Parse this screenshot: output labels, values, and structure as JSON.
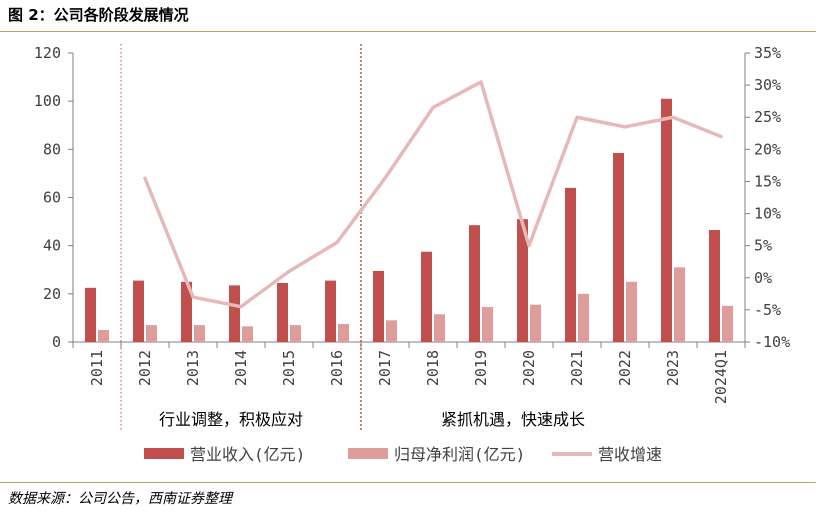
{
  "figure": {
    "title": "图 2：公司各阶段发展情况",
    "source": "数据来源：公司公告，西南证券整理"
  },
  "colors": {
    "revenue": "#c0504d",
    "net_profit": "#dc9d9b",
    "growth": "#e6b9b8",
    "phase_divider": "#c0504d",
    "rule": "#c69c62",
    "axis": "#808080"
  },
  "chart_data": {
    "type": "bar",
    "categories": [
      "2011",
      "2012",
      "2013",
      "2014",
      "2015",
      "2016",
      "2017",
      "2018",
      "2019",
      "2020",
      "2021",
      "2022",
      "2023",
      "2024Q1"
    ],
    "series": [
      {
        "name": "营业收入(亿元)",
        "type": "bar",
        "axis": "left",
        "values": [
          22.5,
          25.5,
          25,
          23.5,
          24.5,
          25.5,
          29.5,
          37.5,
          48.5,
          51,
          64,
          78.5,
          101,
          46.5
        ]
      },
      {
        "name": "归母净利润(亿元)",
        "type": "bar",
        "axis": "left",
        "values": [
          5,
          7,
          7,
          6.5,
          7,
          7.5,
          9,
          11.5,
          14.5,
          15.5,
          20,
          25,
          31,
          15
        ]
      },
      {
        "name": "营收增速",
        "type": "line",
        "axis": "right",
        "unit": "%",
        "values": [
          null,
          15.5,
          -3,
          -4.5,
          1,
          5.5,
          15.5,
          26.5,
          30.5,
          5,
          25,
          23.5,
          25,
          22
        ]
      }
    ],
    "y_left": {
      "min": 0,
      "max": 120,
      "ticks": [
        "0",
        "20",
        "40",
        "60",
        "80",
        "100",
        "120"
      ]
    },
    "y_right": {
      "min": -10,
      "max": 35,
      "ticks": [
        "-10%",
        "-5%",
        "0%",
        "5%",
        "10%",
        "15%",
        "20%",
        "25%",
        "30%",
        "35%"
      ]
    },
    "phases": [
      {
        "label": "行业调整，积极应对",
        "from": "2012",
        "to": "2016"
      },
      {
        "label": "紧抓机遇，快速成长",
        "from": "2017",
        "to": "2024Q1"
      }
    ],
    "legend_position": "bottom",
    "grid": false
  }
}
